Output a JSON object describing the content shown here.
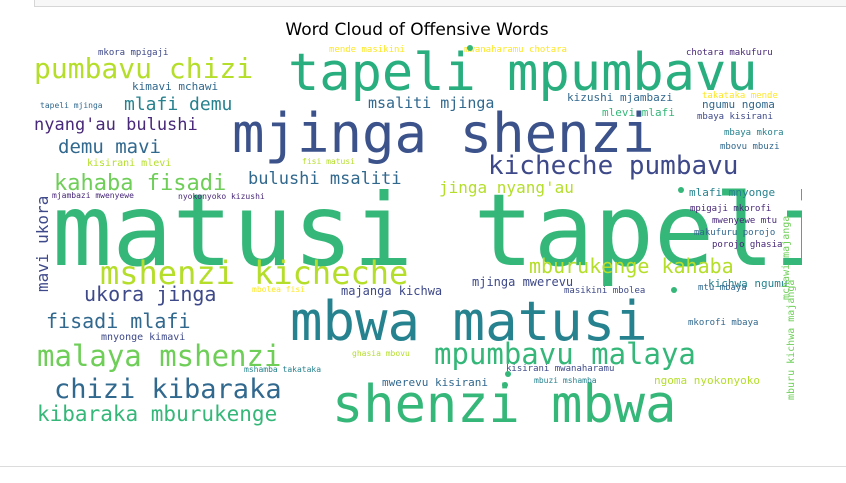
{
  "chart_data": {
    "type": "wordcloud",
    "title": "Word Cloud of Offensive Words",
    "colormap": "viridis",
    "words": [
      {
        "text": "matusi tapeli",
        "weight": 100,
        "color": "#35b779"
      },
      {
        "text": "mjinga shenzi",
        "weight": 72,
        "color": "#3b528b"
      },
      {
        "text": "mbwa matusi",
        "weight": 72,
        "color": "#26828e"
      },
      {
        "text": "shenzi mbwa",
        "weight": 72,
        "color": "#35b779"
      },
      {
        "text": "tapeli mpumbavu",
        "weight": 68,
        "color": "#29af7f"
      },
      {
        "text": "mshenzi kicheche",
        "weight": 44,
        "color": "#b5de2b"
      },
      {
        "text": "pumbavu chizi",
        "weight": 40,
        "color": "#b5de2b"
      },
      {
        "text": "malaya mshenzi",
        "weight": 40,
        "color": "#6ece58"
      },
      {
        "text": "mpumbavu malaya",
        "weight": 40,
        "color": "#35b779"
      },
      {
        "text": "chizi kibaraka",
        "weight": 38,
        "color": "#31688e"
      },
      {
        "text": "kicheche pumbavu",
        "weight": 36,
        "color": "#3e4989"
      },
      {
        "text": "kahaba fisadi",
        "weight": 30,
        "color": "#6ece58"
      },
      {
        "text": "kibaraka mburukenge",
        "weight": 28,
        "color": "#35b779"
      },
      {
        "text": "mburukenge kahaba",
        "weight": 28,
        "color": "#b5de2b"
      },
      {
        "text": "ukora jinga",
        "weight": 28,
        "color": "#3e4989"
      },
      {
        "text": "fisadi mlafi",
        "weight": 28,
        "color": "#31688e"
      },
      {
        "text": "mlafi demu",
        "weight": 26,
        "color": "#26828e"
      },
      {
        "text": "demu mavi",
        "weight": 26,
        "color": "#31688e"
      },
      {
        "text": "nyang'au bulushi",
        "weight": 24,
        "color": "#482878"
      },
      {
        "text": "mavi ukora",
        "weight": 24,
        "color": "#3e4989"
      },
      {
        "text": "bulushi msaliti",
        "weight": 24,
        "color": "#31688e"
      },
      {
        "text": "jinga nyang'au",
        "weight": 22,
        "color": "#b5de2b"
      },
      {
        "text": "msaliti mjinga",
        "weight": 20,
        "color": "#31688e"
      },
      {
        "text": "mjinga mwerevu",
        "weight": 16,
        "color": "#3e4989"
      },
      {
        "text": "majanga kichwa",
        "weight": 16,
        "color": "#3e4989"
      },
      {
        "text": "mwerevu kisirani",
        "weight": 14,
        "color": "#31688e"
      },
      {
        "text": "kimavi mchawi",
        "weight": 14,
        "color": "#31688e"
      },
      {
        "text": "kizushi mjambazi",
        "weight": 13,
        "color": "#31688e"
      },
      {
        "text": "mlevi mlafi",
        "weight": 13,
        "color": "#35b779"
      },
      {
        "text": "ngumu ngoma",
        "weight": 13,
        "color": "#31688e"
      },
      {
        "text": "mlafi mnyonge",
        "weight": 12,
        "color": "#26828e"
      },
      {
        "text": "kichwa ngumu",
        "weight": 13,
        "color": "#26828e"
      },
      {
        "text": "ngoma nyokonyoko",
        "weight": 12,
        "color": "#b5de2b"
      },
      {
        "text": "mnyonge kimavi",
        "weight": 11,
        "color": "#3e4989"
      },
      {
        "text": "mburu kichwa majanga",
        "weight": 11,
        "color": "#6ece58"
      },
      {
        "text": "mchawi majanga",
        "weight": 11,
        "color": "#6ece58"
      },
      {
        "text": "kisirani mlevi",
        "weight": 11,
        "color": "#b5de2b"
      },
      {
        "text": "mkorofi mbaya",
        "weight": 10,
        "color": "#31688e"
      },
      {
        "text": "mtu mbaya",
        "weight": 10,
        "color": "#31688e"
      },
      {
        "text": "mbaya mkora",
        "weight": 10,
        "color": "#26828e"
      },
      {
        "text": "mbovu mbuzi",
        "weight": 10,
        "color": "#31688e"
      },
      {
        "text": "mbaya kisirani",
        "weight": 10,
        "color": "#3e4989"
      },
      {
        "text": "mpigaji mkorofi",
        "weight": 10,
        "color": "#482878"
      },
      {
        "text": "mwenyewe mtu",
        "weight": 10,
        "color": "#482878"
      },
      {
        "text": "makufuru porojo",
        "weight": 10,
        "color": "#31688e"
      },
      {
        "text": "porojo ghasia",
        "weight": 10,
        "color": "#482878"
      },
      {
        "text": "mkora mpigaji",
        "weight": 10,
        "color": "#3e4989"
      },
      {
        "text": "mende masikini",
        "weight": 10,
        "color": "#fde725"
      },
      {
        "text": "mwanaharamu chotara",
        "weight": 10,
        "color": "#fde725"
      },
      {
        "text": "chotara makufuru",
        "weight": 10,
        "color": "#482878"
      },
      {
        "text": "takataka mende",
        "weight": 10,
        "color": "#fde725"
      },
      {
        "text": "tapeli mjinga",
        "weight": 9,
        "color": "#31688e"
      },
      {
        "text": "fisi matusi",
        "weight": 9,
        "color": "#b5de2b"
      },
      {
        "text": "mjambazi mwenyewe",
        "weight": 9,
        "color": "#482878"
      },
      {
        "text": "nyokonyoko kizushi",
        "weight": 9,
        "color": "#482878"
      },
      {
        "text": "mbolea fisi",
        "weight": 9,
        "color": "#fde725"
      },
      {
        "text": "masikini mbolea",
        "weight": 9,
        "color": "#3e4989"
      },
      {
        "text": "kisirani mwanaharamu",
        "weight": 10,
        "color": "#3e4989"
      },
      {
        "text": "mbuzi mshamba",
        "weight": 9,
        "color": "#26828e"
      },
      {
        "text": "ghasia mbovu",
        "weight": 9,
        "color": "#b5de2b"
      },
      {
        "text": "mshamba takataka",
        "weight": 9,
        "color": "#26828e"
      }
    ]
  }
}
